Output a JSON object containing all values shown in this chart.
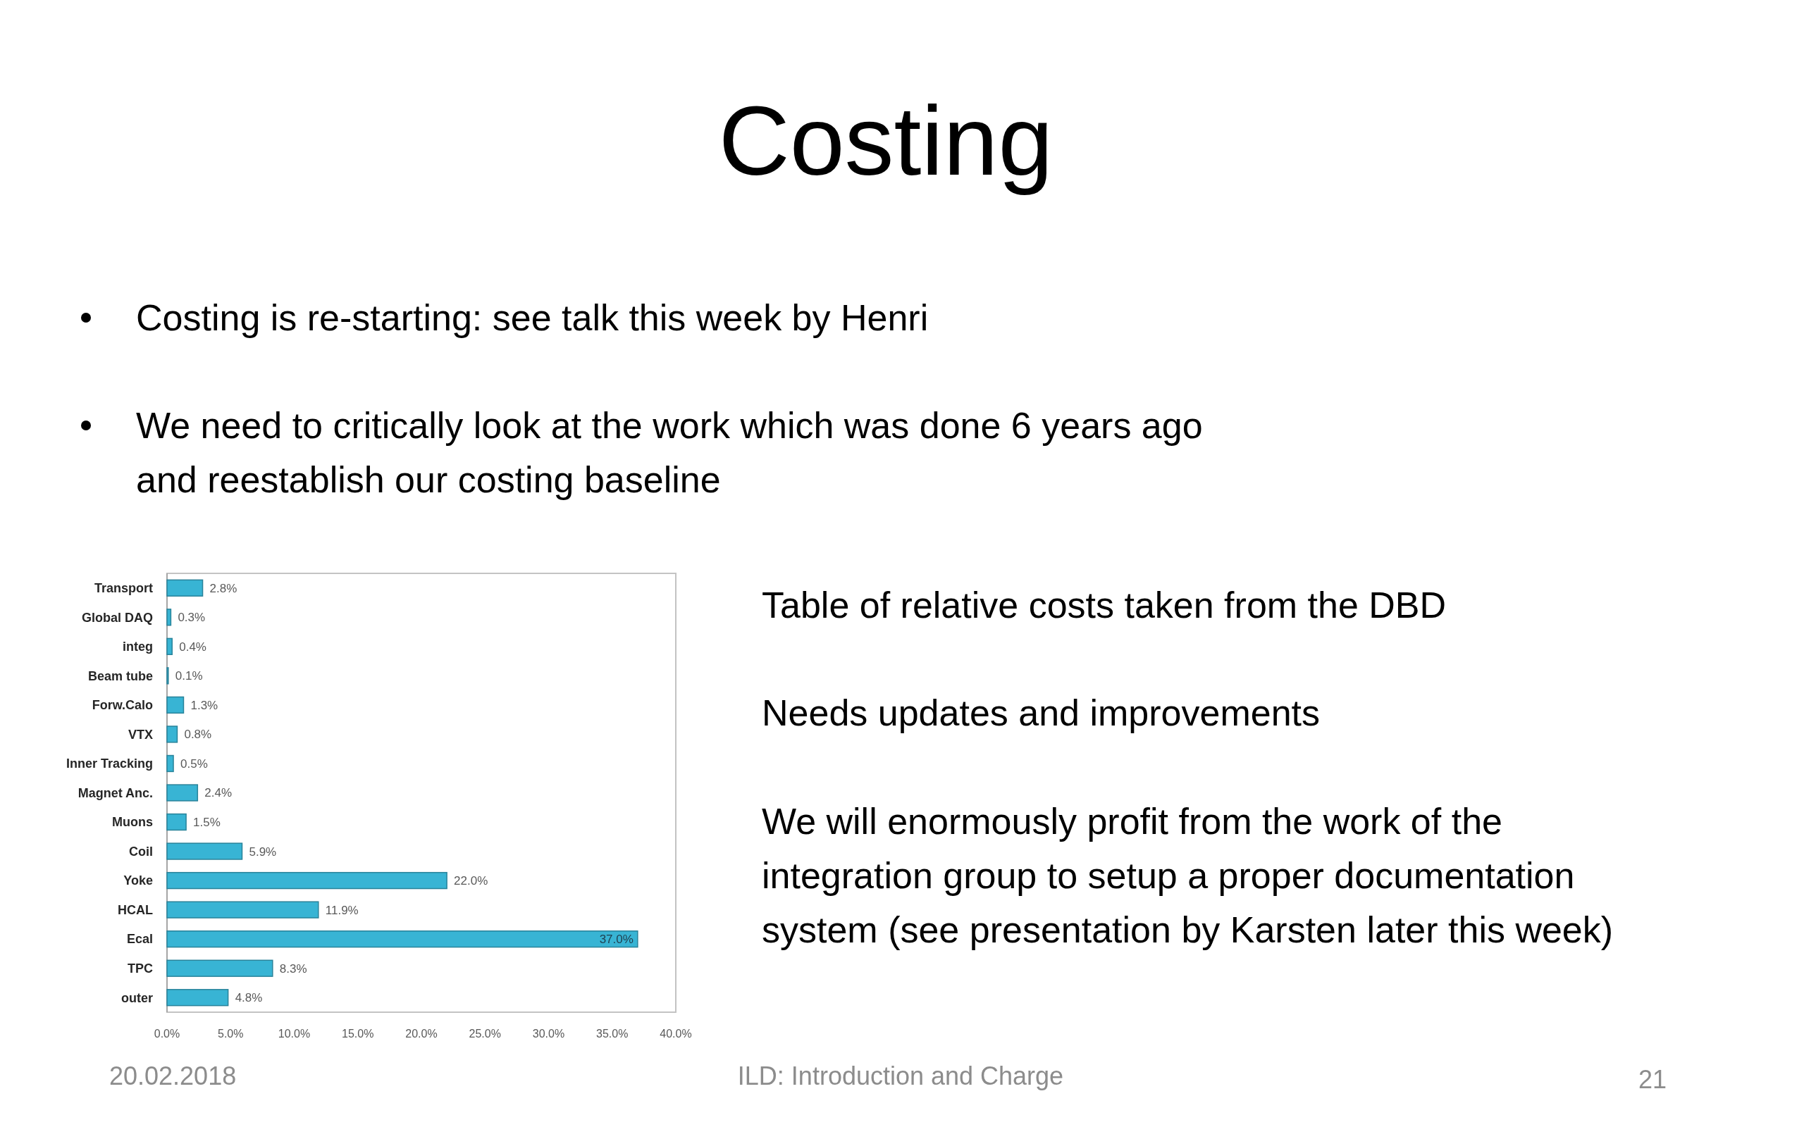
{
  "chart_data": {
    "type": "bar",
    "orientation": "horizontal",
    "title": "Costing",
    "categories": [
      "Transport",
      "Global DAQ",
      "integ",
      "Beam tube",
      "Forw.Calo",
      "VTX",
      "Inner Tracking",
      "Magnet Anc.",
      "Muons",
      "Coil",
      "Yoke",
      "HCAL",
      "Ecal",
      "TPC",
      "outer"
    ],
    "values": [
      2.8,
      0.3,
      0.4,
      0.1,
      1.3,
      0.8,
      0.5,
      2.4,
      1.5,
      5.9,
      22.0,
      11.9,
      37.0,
      8.3,
      4.8
    ],
    "value_labels": [
      "2.8%",
      "0.3%",
      "0.4%",
      "0.1%",
      "1.3%",
      "0.8%",
      "0.5%",
      "2.4%",
      "1.5%",
      "5.9%",
      "22.0%",
      "11.9%",
      "37.0%",
      "8.3%",
      "4.8%"
    ],
    "color": "#38b4d4",
    "xlim": [
      0,
      40
    ],
    "xticks": [
      {
        "value": 0,
        "label": "0.0%"
      },
      {
        "value": 5,
        "label": "5.0%"
      },
      {
        "value": 10,
        "label": "10.0%"
      },
      {
        "value": 15,
        "label": "15.0%"
      },
      {
        "value": 20,
        "label": "20.0%"
      },
      {
        "value": 25,
        "label": "25.0%"
      },
      {
        "value": 30,
        "label": "30.0%"
      },
      {
        "value": 35,
        "label": "35.0%"
      },
      {
        "value": 40,
        "label": "40.0%"
      }
    ],
    "annotations": [
      "Costing is re-starting: see talk this week by Henri",
      "We need to critically look at the work which was done 6 years ago and reestablish our costing baseline",
      "Table of relative costs taken from the DBD",
      "Needs updates and improvements",
      "We will enormously profit from the work of the integration group to setup a proper documentation system (see presentation by Karsten later this week)",
      "20.02.2018",
      "ILD: Introduction and Charge",
      "21"
    ]
  }
}
